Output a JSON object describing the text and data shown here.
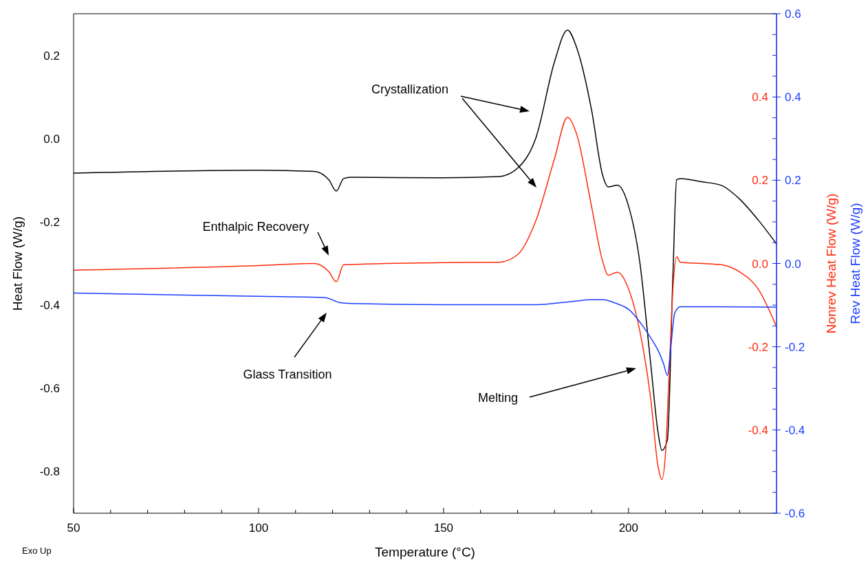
{
  "chart_data": {
    "type": "line",
    "xlabel": "Temperature (°C)",
    "ylabel": "Heat Flow (W/g)",
    "y2label": "Nonrev Heat Flow (W/g)",
    "y3label": "Rev Heat Flow (W/g)",
    "xlim": [
      50,
      240
    ],
    "xticks": [
      50,
      {
        "value": 60,
        "label": null
      },
      {
        "value": 70,
        "label": null
      },
      {
        "value": 80,
        "label": null
      },
      {
        "value": 90,
        "label": null
      },
      100,
      {
        "value": 110,
        "label": null
      },
      {
        "value": 120,
        "label": null
      },
      {
        "value": 130,
        "label": null
      },
      {
        "value": 140,
        "label": null
      },
      150,
      {
        "value": 160,
        "label": null
      },
      {
        "value": 170,
        "label": null
      },
      {
        "value": 180,
        "label": null
      },
      {
        "value": 190,
        "label": null
      },
      200,
      {
        "value": 210,
        "label": null
      },
      {
        "value": 220,
        "label": null
      },
      {
        "value": 230,
        "label": null
      }
    ],
    "ylim": [
      -0.9,
      0.3
    ],
    "yticks": [
      {
        "value": -0.8,
        "label": "-0.8"
      },
      {
        "value": -0.6,
        "label": "-0.6"
      },
      {
        "value": -0.4,
        "label": "-0.4"
      },
      {
        "value": -0.2,
        "label": "-0.2"
      },
      {
        "value": 0,
        "label": "0.0"
      },
      0.2
    ],
    "y2lim": [
      -0.6,
      0.6
    ],
    "y2ticks": [
      {
        "value": -0.4,
        "label": "-0.4"
      },
      {
        "value": -0.2,
        "label": "-0.2"
      },
      {
        "value": 0,
        "label": "0.0"
      },
      0.2,
      0.4
    ],
    "y3lim": [
      -0.6,
      0.6
    ],
    "y3ticks": [
      {
        "value": -0.6,
        "label": "-0.6"
      },
      {
        "value": -0.55,
        "label": null
      },
      {
        "value": -0.5,
        "label": null
      },
      {
        "value": -0.45,
        "label": null
      },
      {
        "value": -0.4,
        "label": "-0.4"
      },
      {
        "value": -0.35,
        "label": null
      },
      {
        "value": -0.3,
        "label": null
      },
      {
        "value": -0.25,
        "label": null
      },
      {
        "value": -0.2,
        "label": "-0.2"
      },
      {
        "value": -0.15,
        "label": null
      },
      {
        "value": -0.1,
        "label": null
      },
      {
        "value": -0.05,
        "label": null
      },
      {
        "value": 0,
        "label": "0.0"
      },
      {
        "value": 0.05,
        "label": null
      },
      {
        "value": 0.1,
        "label": null
      },
      {
        "value": 0.15,
        "label": null
      },
      0.2,
      {
        "value": 0.25,
        "label": null
      },
      {
        "value": 0.3,
        "label": null
      },
      {
        "value": 0.35,
        "label": null
      },
      0.4,
      {
        "value": 0.45,
        "label": null
      },
      {
        "value": 0.5,
        "label": null
      },
      {
        "value": 0.55,
        "label": null
      },
      0.6
    ],
    "grid": false,
    "series": [
      {
        "color": "#000000",
        "x": [
          50,
          100,
          115,
          119,
          121,
          123,
          125,
          150,
          165,
          170,
          175,
          180,
          183.5,
          186,
          190,
          193,
          194.5,
          197,
          200,
          203,
          206,
          208,
          209,
          210.5,
          212,
          213,
          214,
          220,
          225,
          230,
          235,
          240
        ],
        "values": [
          -0.083,
          -0.076,
          -0.079,
          -0.099,
          -0.126,
          -0.096,
          -0.093,
          -0.094,
          -0.091,
          -0.071,
          0.003,
          0.185,
          0.261,
          0.218,
          0.069,
          -0.088,
          -0.116,
          -0.112,
          -0.162,
          -0.294,
          -0.542,
          -0.707,
          -0.749,
          -0.724,
          -0.327,
          -0.099,
          -0.096,
          -0.104,
          -0.112,
          -0.145,
          -0.195,
          -0.253
        ]
      },
      {
        "color": "#ff2a0a",
        "axis": "y2",
        "x": [
          50,
          100,
          115,
          119,
          121,
          123,
          150,
          165,
          170,
          175,
          180,
          183.5,
          186,
          190,
          193,
          194.5,
          197,
          200,
          203,
          206,
          208,
          209,
          210,
          211,
          212,
          213,
          214,
          220,
          225,
          230,
          235,
          240
        ],
        "values": [
          -0.016,
          -0.005,
          0,
          -0.02,
          -0.044,
          -0.003,
          0.002,
          0.003,
          0.021,
          0.104,
          0.252,
          0.351,
          0.31,
          0.137,
          0.005,
          -0.028,
          -0.021,
          -0.061,
          -0.16,
          -0.325,
          -0.489,
          -0.519,
          -0.456,
          -0.259,
          -0.061,
          0.016,
          0.003,
          0,
          -0.003,
          -0.02,
          -0.061,
          -0.152
        ]
      },
      {
        "color": "#1a3cff",
        "axis": "y3",
        "x": [
          50,
          100,
          118,
          122,
          125,
          150,
          175,
          185,
          190,
          193,
          197,
          200,
          204,
          207,
          208,
          209.5,
          210.5,
          211.5,
          212.5,
          214,
          220,
          240
        ],
        "values": [
          -0.071,
          -0.079,
          -0.082,
          -0.094,
          -0.096,
          -0.099,
          -0.099,
          -0.091,
          -0.087,
          -0.087,
          -0.097,
          -0.11,
          -0.152,
          -0.193,
          -0.209,
          -0.242,
          -0.269,
          -0.193,
          -0.119,
          -0.104,
          -0.104,
          -0.105
        ]
      }
    ],
    "annotations": [
      "Crystallization",
      "Enthalpic Recovery",
      "Glass Transition",
      "Melting",
      "Exo Up"
    ]
  }
}
